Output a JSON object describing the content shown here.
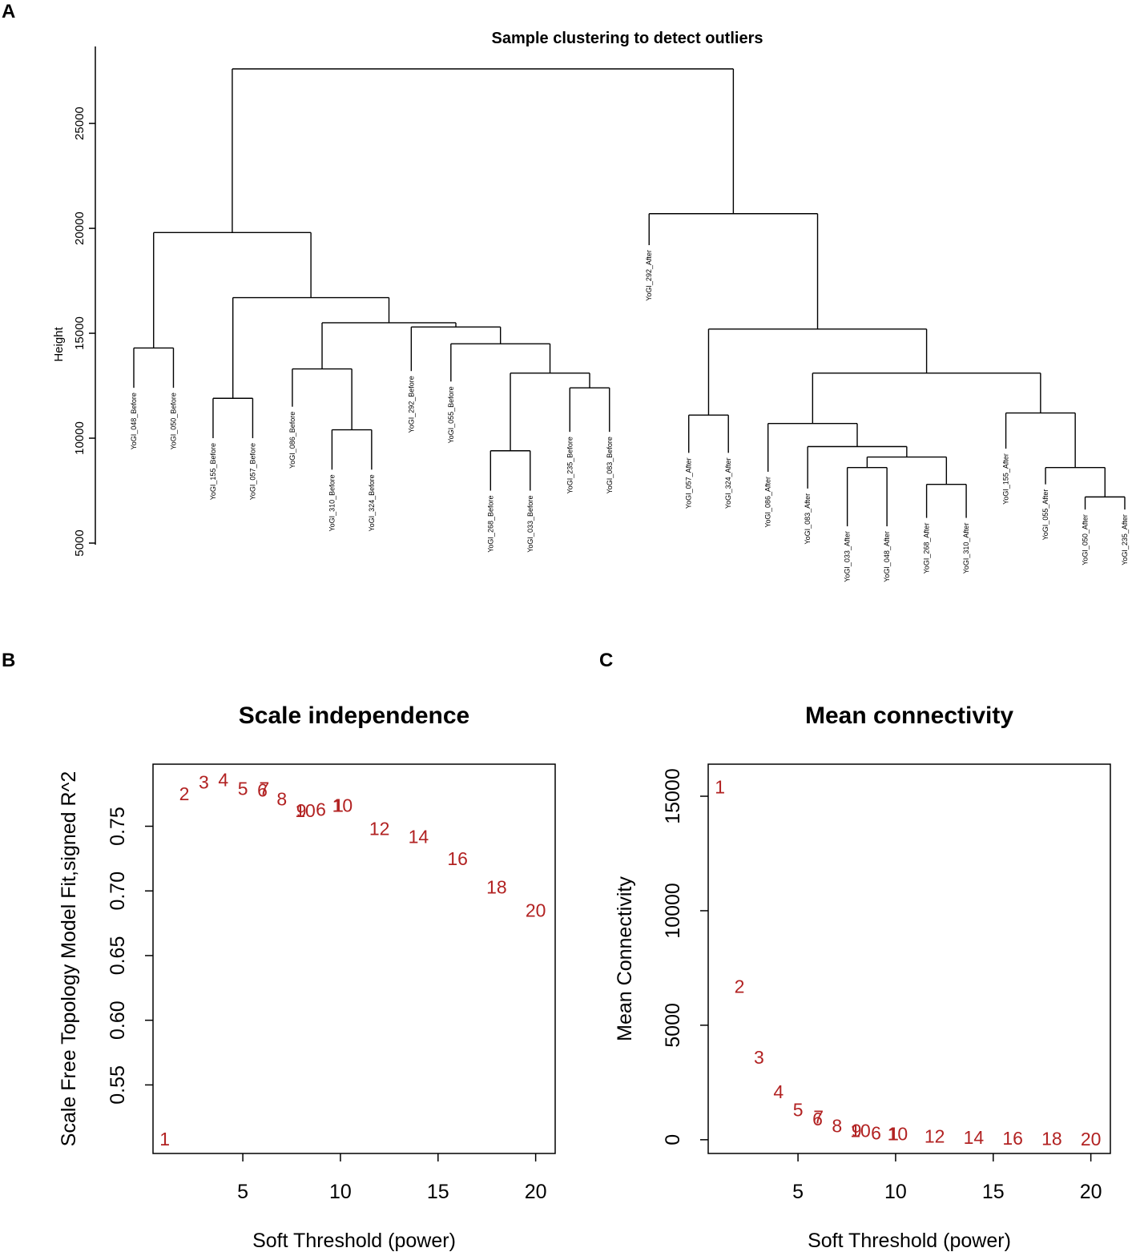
{
  "panels": {
    "a": "A",
    "b": "B",
    "c": "C"
  },
  "chart_data": [
    {
      "type": "dendrogram",
      "title": "Sample clustering to detect outliers",
      "ylabel": "Height",
      "ylim": [
        5000,
        27600
      ],
      "yticks": [
        5000,
        10000,
        15000,
        20000,
        25000
      ],
      "leaves": [
        {
          "label": "YoGI_048_Before",
          "end": 12400
        },
        {
          "label": "YoGI_050_Before",
          "end": 12400
        },
        {
          "label": "YoGI_155_Before",
          "end": 10000
        },
        {
          "label": "YoGI_057_Before",
          "end": 10000
        },
        {
          "label": "YoGI_086_Before",
          "end": 11500
        },
        {
          "label": "YoGI_310_Before",
          "end": 8500
        },
        {
          "label": "YoGI_324_Before",
          "end": 8500
        },
        {
          "label": "YoGI_292_Before",
          "end": 13200
        },
        {
          "label": "YoGI_055_Before",
          "end": 12700
        },
        {
          "label": "YoGI_268_Before",
          "end": 7500
        },
        {
          "label": "YoGI_033_Before",
          "end": 7500
        },
        {
          "label": "YoGI_235_Before",
          "end": 10300
        },
        {
          "label": "YoGI_083_Before",
          "end": 10300
        },
        {
          "label": "YoGI_292_After",
          "end": 19200
        },
        {
          "label": "YoGI_057_After",
          "end": 9300
        },
        {
          "label": "YoGI_324_After",
          "end": 9300
        },
        {
          "label": "YoGI_086_After",
          "end": 8400
        },
        {
          "label": "YoGI_083_After",
          "end": 7600
        },
        {
          "label": "YoGI_033_After",
          "end": 5800
        },
        {
          "label": "YoGI_048_After",
          "end": 5800
        },
        {
          "label": "YoGI_268_After",
          "end": 6200
        },
        {
          "label": "YoGI_310_After",
          "end": 6200
        },
        {
          "label": "YoGI_155_After",
          "end": 9500
        },
        {
          "label": "YoGI_055_After",
          "end": 7800
        },
        {
          "label": "YoGI_050_After",
          "end": 6600
        },
        {
          "label": "YoGI_235_After",
          "end": 6600
        }
      ],
      "merges": [
        {
          "a": "L0",
          "b": "L1",
          "h": 14300
        },
        {
          "a": "L2",
          "b": "L3",
          "h": 11900
        },
        {
          "a": "L5",
          "b": "L6",
          "h": 10400
        },
        {
          "a": "L4",
          "b": "M2",
          "h": 13300
        },
        {
          "a": "L9",
          "b": "L10",
          "h": 9400
        },
        {
          "a": "L11",
          "b": "L12",
          "h": 12400
        },
        {
          "a": "M4",
          "b": "M5",
          "h": 13100
        },
        {
          "a": "L8",
          "b": "M6",
          "h": 14500
        },
        {
          "a": "L7",
          "b": "M7",
          "h": 15300
        },
        {
          "a": "M3",
          "b": "M8",
          "h": 15500
        },
        {
          "a": "M1",
          "b": "M9",
          "h": 16700
        },
        {
          "a": "M0",
          "b": "M10",
          "h": 19800
        },
        {
          "a": "L14",
          "b": "L15",
          "h": 11100
        },
        {
          "a": "L18",
          "b": "L19",
          "h": 8600
        },
        {
          "a": "L20",
          "b": "L21",
          "h": 7800
        },
        {
          "a": "M13",
          "b": "M14",
          "h": 9100
        },
        {
          "a": "L17",
          "b": "M15",
          "h": 9600
        },
        {
          "a": "L16",
          "b": "M16",
          "h": 10700
        },
        {
          "a": "L24",
          "b": "L25",
          "h": 7200
        },
        {
          "a": "L23",
          "b": "M18",
          "h": 8600
        },
        {
          "a": "L22",
          "b": "M19",
          "h": 11200
        },
        {
          "a": "M17",
          "b": "M20",
          "h": 13100
        },
        {
          "a": "M12",
          "b": "M21",
          "h": 15200
        },
        {
          "a": "L13",
          "b": "M22",
          "h": 20700
        },
        {
          "a": "M11",
          "b": "M23",
          "h": 27600
        }
      ]
    },
    {
      "type": "scatter",
      "title": "Scale independence",
      "xlabel": "Soft Threshold (power)",
      "ylabel": "Scale Free Topology Model Fit,signed R^2",
      "xlim": [
        0.4,
        21.0
      ],
      "ylim": [
        0.497,
        0.798
      ],
      "xticks": [
        5,
        10,
        15,
        20
      ],
      "yticks": [
        0.55,
        0.6,
        0.65,
        0.7,
        0.75
      ],
      "points": [
        {
          "label": "1",
          "x": 1,
          "y": 0.508
        },
        {
          "label": "2",
          "x": 2,
          "y": 0.775
        },
        {
          "label": "3",
          "x": 3,
          "y": 0.784
        },
        {
          "label": "4",
          "x": 4,
          "y": 0.786
        },
        {
          "label": "5",
          "x": 5,
          "y": 0.779
        },
        {
          "label": "6",
          "x": 6,
          "y": 0.778
        },
        {
          "label": "7",
          "x": 6.1,
          "y": 0.779
        },
        {
          "label": "8",
          "x": 7,
          "y": 0.771
        },
        {
          "label": "9",
          "x": 8,
          "y": 0.762
        },
        {
          "label": "10",
          "x": 8.2,
          "y": 0.762
        },
        {
          "label": "6",
          "x": 9,
          "y": 0.763
        },
        {
          "label": "1",
          "x": 9.9,
          "y": 0.766
        },
        {
          "label": "10",
          "x": 10.1,
          "y": 0.766
        },
        {
          "label": "12",
          "x": 12,
          "y": 0.748
        },
        {
          "label": "14",
          "x": 14,
          "y": 0.742
        },
        {
          "label": "16",
          "x": 16,
          "y": 0.725
        },
        {
          "label": "18",
          "x": 18,
          "y": 0.703
        },
        {
          "label": "20",
          "x": 20,
          "y": 0.685
        }
      ]
    },
    {
      "type": "scatter",
      "title": "Mean connectivity",
      "xlabel": "Soft Threshold (power)",
      "ylabel": "Mean Connectivity",
      "xlim": [
        0.4,
        21.0
      ],
      "ylim": [
        -600,
        16400
      ],
      "xticks": [
        5,
        10,
        15,
        20
      ],
      "yticks": [
        0,
        5000,
        10000,
        15000
      ],
      "points": [
        {
          "label": "1",
          "x": 1,
          "y": 15400
        },
        {
          "label": "2",
          "x": 2,
          "y": 6700
        },
        {
          "label": "3",
          "x": 3,
          "y": 3600
        },
        {
          "label": "4",
          "x": 4,
          "y": 2100
        },
        {
          "label": "5",
          "x": 5,
          "y": 1300
        },
        {
          "label": "6",
          "x": 6,
          "y": 900
        },
        {
          "label": "7",
          "x": 6.05,
          "y": 1000
        },
        {
          "label": "8",
          "x": 7,
          "y": 600
        },
        {
          "label": "9",
          "x": 8,
          "y": 400
        },
        {
          "label": "10",
          "x": 8.2,
          "y": 400
        },
        {
          "label": "6",
          "x": 9,
          "y": 300
        },
        {
          "label": "1",
          "x": 9.9,
          "y": 250
        },
        {
          "label": "10",
          "x": 10.1,
          "y": 250
        },
        {
          "label": "12",
          "x": 12,
          "y": 150
        },
        {
          "label": "14",
          "x": 14,
          "y": 100
        },
        {
          "label": "16",
          "x": 16,
          "y": 60
        },
        {
          "label": "18",
          "x": 18,
          "y": 40
        },
        {
          "label": "20",
          "x": 20,
          "y": 30
        }
      ]
    }
  ]
}
